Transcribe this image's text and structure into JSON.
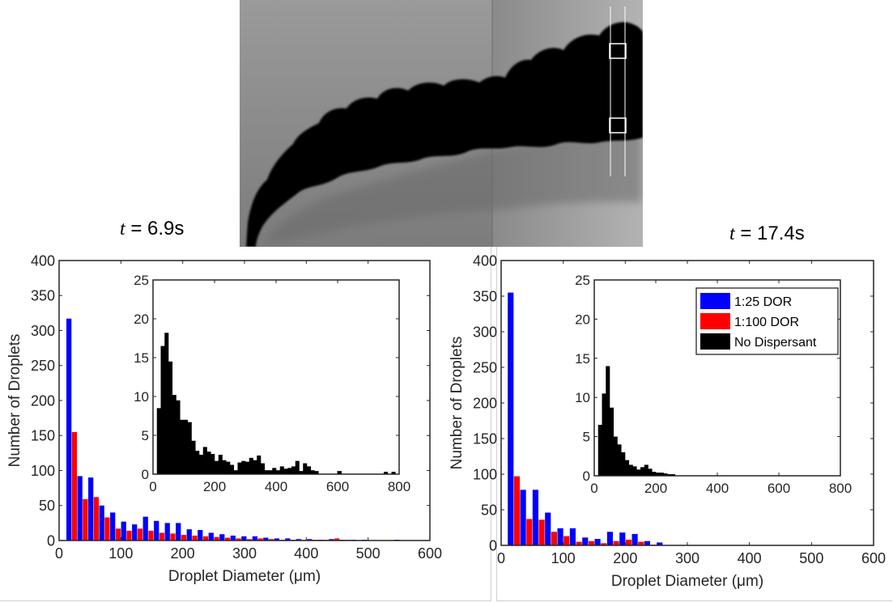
{
  "labels": {
    "time_left_var": "t",
    "time_left_value": " = 6.9s",
    "time_right_var": "t",
    "time_right_value": " = 17.4s"
  },
  "colors": {
    "dor25": "#0000ff",
    "dor100": "#ff0000",
    "none": "#000000"
  },
  "legend": {
    "position": "inset-top-right",
    "entries": [
      "1:25 DOR",
      "1:100 DOR",
      "No Dispersant"
    ]
  },
  "chart_data": [
    {
      "type": "bar",
      "panel": "left",
      "time": "t = 6.9s",
      "xlabel": "Droplet Diameter (μm)",
      "ylabel": "Number of Droplets",
      "xlim": [
        0,
        600
      ],
      "ylim": [
        0,
        400
      ],
      "xticks": [
        0,
        100,
        200,
        300,
        400,
        500,
        600
      ],
      "yticks": [
        0,
        50,
        100,
        150,
        200,
        250,
        300,
        350,
        400
      ],
      "bin_centers": [
        20,
        37.7,
        55.4,
        73.1,
        90.8,
        108.5,
        126.2,
        143.9,
        161.6,
        179.3,
        197,
        214.7,
        232.4,
        250.1,
        267.8,
        285.5,
        303.2,
        320.9,
        338.6,
        356.3,
        374,
        391.7,
        409.4,
        427.1,
        444.8,
        462.5,
        480.2,
        497.9,
        515.6,
        533.3,
        551
      ],
      "series": [
        {
          "name": "1:25 DOR",
          "values": [
            317,
            92,
            90,
            50,
            40,
            27,
            23,
            34,
            28,
            25,
            25,
            16,
            15,
            11,
            9,
            7,
            6,
            6,
            4,
            3,
            3,
            2,
            2,
            1,
            2,
            1,
            1,
            1,
            0,
            0,
            1
          ]
        },
        {
          "name": "1:100 DOR",
          "values": [
            155,
            59,
            62,
            33,
            17,
            14,
            17,
            14,
            11,
            10,
            8,
            7,
            6,
            5,
            4,
            3,
            2,
            3,
            2,
            1,
            1,
            1,
            1,
            1,
            3,
            1,
            0,
            0,
            0,
            0,
            0
          ]
        }
      ],
      "inset": {
        "type": "bar",
        "series_name": "No Dispersant",
        "xlim": [
          0,
          800
        ],
        "ylim": [
          0,
          25
        ],
        "xticks": [
          0,
          200,
          400,
          600,
          800
        ],
        "yticks": [
          0,
          5,
          10,
          15,
          20,
          25
        ],
        "bin_width": 12.5,
        "bin_starts": [
          12.5,
          25,
          37.5,
          50,
          62.5,
          75,
          87.5,
          100,
          112.5,
          125,
          137.5,
          150,
          162.5,
          175,
          187.5,
          200,
          212.5,
          225,
          237.5,
          250,
          262.5,
          275,
          287.5,
          300,
          312.5,
          325,
          337.5,
          350,
          362.5,
          375,
          387.5,
          400,
          412.5,
          425,
          437.5,
          450,
          462.5,
          475,
          487.5,
          500,
          512.5,
          525,
          600,
          750,
          775
        ],
        "values": [
          8.5,
          16.5,
          18.2,
          14.5,
          10.2,
          9.5,
          7.0,
          7.0,
          6.7,
          4.3,
          3.0,
          2.5,
          3.5,
          2.9,
          2.6,
          1.7,
          2.5,
          1.8,
          1.6,
          1.2,
          0.5,
          1.5,
          1.7,
          1.6,
          2.1,
          1.8,
          2.4,
          1.4,
          0.5,
          0.5,
          0.8,
          0.5,
          1.0,
          0.7,
          0.8,
          1.0,
          1.7,
          0.4,
          1.4,
          1.0,
          0.5,
          0.4,
          0.4,
          0.3,
          0.3
        ]
      }
    },
    {
      "type": "bar",
      "panel": "right",
      "time": "t = 17.4s",
      "xlabel": "Droplet Diameter (μm)",
      "ylabel": "Number of Droplets",
      "xlim": [
        0,
        600
      ],
      "ylim": [
        0,
        400
      ],
      "xticks": [
        0,
        100,
        200,
        300,
        400,
        500,
        600
      ],
      "yticks": [
        0,
        50,
        100,
        150,
        200,
        250,
        300,
        350,
        400
      ],
      "bin_centers": [
        20,
        40,
        60,
        80,
        100,
        120,
        140,
        160,
        180,
        200,
        220,
        240,
        260
      ],
      "series": [
        {
          "name": "1:25 DOR",
          "values": [
            355,
            78,
            78,
            46,
            24,
            24,
            11,
            9,
            19,
            18,
            16,
            6,
            4
          ]
        },
        {
          "name": "1:100 DOR",
          "values": [
            97,
            37,
            36,
            19,
            13,
            5,
            6,
            3,
            6,
            8,
            5,
            1,
            0
          ]
        }
      ],
      "inset": {
        "type": "bar",
        "series_name": "No Dispersant",
        "xlim": [
          0,
          800
        ],
        "ylim": [
          0,
          25
        ],
        "xticks": [
          0,
          200,
          400,
          600,
          800
        ],
        "yticks": [
          0,
          5,
          10,
          15,
          20,
          25
        ],
        "bin_width": 12.5,
        "bin_starts": [
          12.5,
          25,
          37.5,
          50,
          62.5,
          75,
          87.5,
          100,
          112.5,
          125,
          137.5,
          150,
          162.5,
          175,
          187.5,
          200,
          212.5,
          225,
          237.5,
          250
        ],
        "values": [
          6.5,
          10.5,
          14.0,
          8.7,
          5.0,
          4.0,
          3.0,
          2.0,
          1.4,
          1.2,
          0.8,
          1.1,
          1.4,
          0.9,
          0.5,
          0.4,
          0.4,
          0.3,
          0.2,
          0.2
        ]
      }
    }
  ]
}
